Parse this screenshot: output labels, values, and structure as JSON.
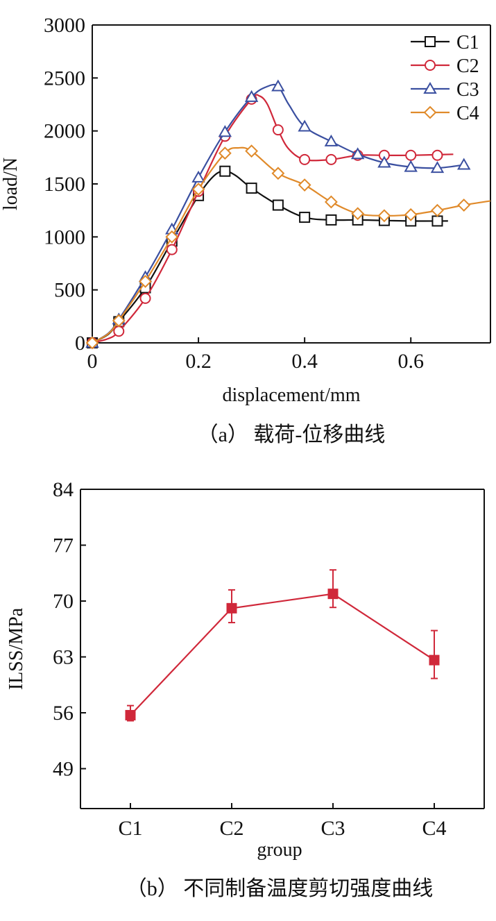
{
  "chart_data": [
    {
      "type": "line",
      "xlabel": "displacement/mm",
      "ylabel": "load/N",
      "caption": "（a） 载荷-位移曲线",
      "xlim": [
        0,
        0.75
      ],
      "ylim": [
        0,
        3000
      ],
      "xticks": [
        "0",
        "0.2",
        "0.4",
        "0.6"
      ],
      "yticks": [
        "0",
        "500",
        "1000",
        "1500",
        "2000",
        "2500",
        "3000"
      ],
      "legend_position": "top-right",
      "series": [
        {
          "name": "C1",
          "color": "#111111",
          "marker": "square",
          "x": [
            0,
            0.05,
            0.1,
            0.15,
            0.2,
            0.25,
            0.3,
            0.35,
            0.4,
            0.45,
            0.5,
            0.55,
            0.6,
            0.65
          ],
          "y": [
            0,
            200,
            520,
            960,
            1390,
            1620,
            1460,
            1300,
            1185,
            1160,
            1160,
            1155,
            1150,
            1150
          ],
          "curve": [
            [
              0,
              0
            ],
            [
              0.03,
              80
            ],
            [
              0.05,
              200
            ],
            [
              0.1,
              520
            ],
            [
              0.15,
              960
            ],
            [
              0.2,
              1390
            ],
            [
              0.23,
              1580
            ],
            [
              0.25,
              1620
            ],
            [
              0.27,
              1580
            ],
            [
              0.3,
              1460
            ],
            [
              0.35,
              1300
            ],
            [
              0.4,
              1185
            ],
            [
              0.45,
              1160
            ],
            [
              0.5,
              1160
            ],
            [
              0.55,
              1155
            ],
            [
              0.6,
              1150
            ],
            [
              0.67,
              1150
            ]
          ]
        },
        {
          "name": "C2",
          "color": "#d0283a",
          "marker": "circle",
          "x": [
            0,
            0.05,
            0.1,
            0.15,
            0.2,
            0.25,
            0.3,
            0.35,
            0.4,
            0.45,
            0.5,
            0.55,
            0.6,
            0.65
          ],
          "y": [
            0,
            110,
            420,
            880,
            1430,
            1950,
            2300,
            2010,
            1730,
            1730,
            1770,
            1770,
            1770,
            1770
          ],
          "curve": [
            [
              0,
              0
            ],
            [
              0.03,
              40
            ],
            [
              0.05,
              110
            ],
            [
              0.1,
              420
            ],
            [
              0.15,
              880
            ],
            [
              0.2,
              1430
            ],
            [
              0.25,
              1950
            ],
            [
              0.3,
              2300
            ],
            [
              0.315,
              2330
            ],
            [
              0.33,
              2250
            ],
            [
              0.35,
              2010
            ],
            [
              0.37,
              1830
            ],
            [
              0.4,
              1730
            ],
            [
              0.45,
              1730
            ],
            [
              0.5,
              1770
            ],
            [
              0.55,
              1770
            ],
            [
              0.6,
              1770
            ],
            [
              0.68,
              1780
            ]
          ]
        },
        {
          "name": "C3",
          "color": "#3a4fa0",
          "marker": "triangle",
          "x": [
            0,
            0.05,
            0.1,
            0.15,
            0.2,
            0.25,
            0.3,
            0.35,
            0.4,
            0.45,
            0.5,
            0.55,
            0.6,
            0.65,
            0.7
          ],
          "y": [
            0,
            220,
            620,
            1070,
            1560,
            1990,
            2320,
            2420,
            2040,
            1900,
            1780,
            1700,
            1660,
            1650,
            1680
          ],
          "curve": [
            [
              0,
              0
            ],
            [
              0.03,
              90
            ],
            [
              0.05,
              220
            ],
            [
              0.1,
              620
            ],
            [
              0.15,
              1070
            ],
            [
              0.2,
              1560
            ],
            [
              0.25,
              1990
            ],
            [
              0.3,
              2320
            ],
            [
              0.33,
              2420
            ],
            [
              0.35,
              2420
            ],
            [
              0.37,
              2250
            ],
            [
              0.4,
              2040
            ],
            [
              0.45,
              1900
            ],
            [
              0.5,
              1780
            ],
            [
              0.55,
              1700
            ],
            [
              0.6,
              1660
            ],
            [
              0.65,
              1650
            ],
            [
              0.7,
              1680
            ]
          ]
        },
        {
          "name": "C4",
          "color": "#e08a2a",
          "marker": "diamond",
          "x": [
            0,
            0.05,
            0.1,
            0.15,
            0.2,
            0.25,
            0.3,
            0.35,
            0.4,
            0.45,
            0.5,
            0.55,
            0.6,
            0.65,
            0.7
          ],
          "y": [
            0,
            210,
            580,
            1000,
            1450,
            1790,
            1810,
            1600,
            1490,
            1330,
            1220,
            1200,
            1210,
            1250,
            1300
          ],
          "curve": [
            [
              0,
              0
            ],
            [
              0.03,
              85
            ],
            [
              0.05,
              210
            ],
            [
              0.1,
              580
            ],
            [
              0.15,
              1000
            ],
            [
              0.2,
              1450
            ],
            [
              0.25,
              1790
            ],
            [
              0.275,
              1840
            ],
            [
              0.3,
              1810
            ],
            [
              0.35,
              1600
            ],
            [
              0.4,
              1490
            ],
            [
              0.45,
              1330
            ],
            [
              0.5,
              1220
            ],
            [
              0.55,
              1200
            ],
            [
              0.6,
              1210
            ],
            [
              0.65,
              1250
            ],
            [
              0.7,
              1300
            ],
            [
              0.75,
              1340
            ]
          ]
        }
      ]
    },
    {
      "type": "line",
      "xlabel": "group",
      "ylabel": "ILSS/MPa",
      "caption": "（b） 不同制备温度剪切强度曲线",
      "categories": [
        "C1",
        "C2",
        "C3",
        "C4"
      ],
      "ylim": [
        44,
        84
      ],
      "yticks": [
        "49",
        "56",
        "63",
        "70",
        "77",
        "84"
      ],
      "color": "#d0283a",
      "marker": "square",
      "values": [
        55.7,
        69.1,
        70.9,
        62.6
      ],
      "error_low": [
        55.0,
        67.3,
        69.2,
        60.3
      ],
      "error_high": [
        56.9,
        71.4,
        73.9,
        66.3
      ]
    }
  ]
}
